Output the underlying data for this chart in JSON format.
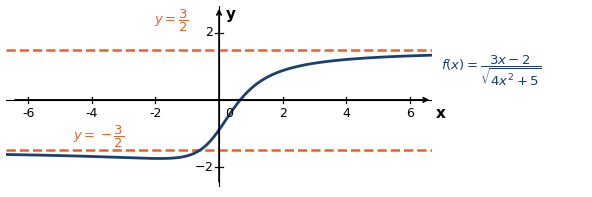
{
  "xlim": [
    -6.7,
    6.7
  ],
  "ylim": [
    -2.6,
    2.8
  ],
  "xticks": [
    -6,
    -4,
    -2,
    2,
    4,
    6
  ],
  "yticks": [
    -2,
    2
  ],
  "asymptote_y_pos": 1.5,
  "asymptote_y_neg": -1.5,
  "asymptote_color": "#E8622A",
  "asymptote_linestyle": "--",
  "asymptote_linewidth": 1.8,
  "curve_color": "#1B3F6E",
  "curve_linewidth": 2.0,
  "label_color_orange": "#E8622A",
  "label_color_blue": "#1B3F6E",
  "background_color": "#FFFFFF"
}
